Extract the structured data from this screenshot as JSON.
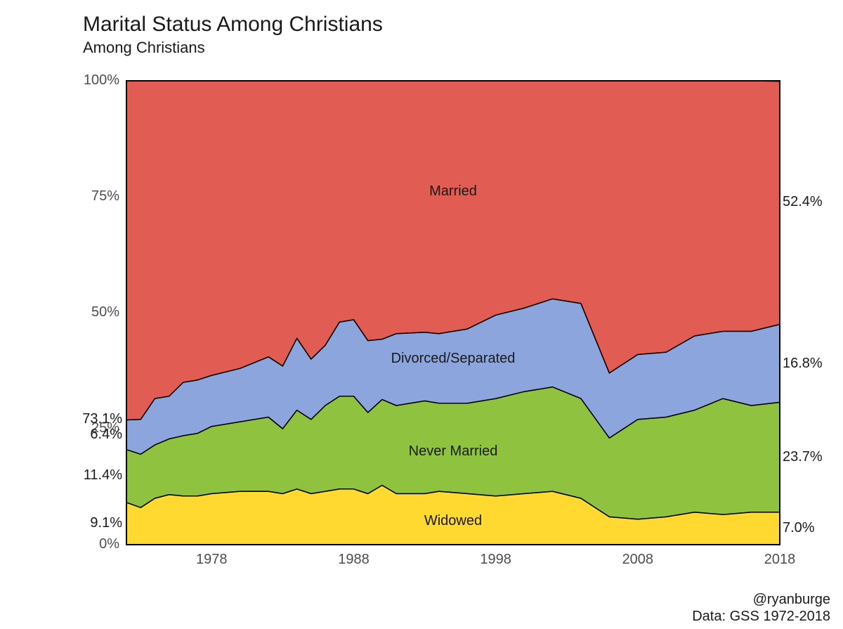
{
  "title": "Marital Status Among Christians",
  "subtitle": "Among Christians",
  "credit_line1": "@ryanburge",
  "credit_line2": "Data: GSS 1972-2018",
  "chart": {
    "type": "stacked-area",
    "background_color": "#ffffff",
    "panel_color": "#ececec",
    "grid_major_color": "#ffffff",
    "grid_minor_color": "#f5f5f5",
    "border_color": "#000000",
    "stroke_color": "#000000",
    "xlim": [
      1972,
      2018
    ],
    "ylim": [
      0,
      100
    ],
    "x_ticks": [
      1978,
      1988,
      1998,
      2008,
      2018
    ],
    "y_ticks": [
      0,
      25,
      50,
      75,
      100
    ],
    "y_minor_ticks": [
      12.5,
      37.5,
      62.5,
      87.5
    ],
    "y_tick_labels": [
      "0%",
      "25%",
      "50%",
      "75%",
      "100%"
    ],
    "years": [
      1972,
      1973,
      1974,
      1975,
      1976,
      1977,
      1978,
      1980,
      1982,
      1983,
      1984,
      1985,
      1986,
      1987,
      1988,
      1989,
      1990,
      1991,
      1993,
      1994,
      1996,
      1998,
      2000,
      2002,
      2004,
      2006,
      2008,
      2010,
      2012,
      2014,
      2016,
      2018
    ],
    "series": [
      {
        "name": "Widowed",
        "color": "#ffd92f",
        "label_x": 1995,
        "label_y": 5,
        "values": [
          9.1,
          8.0,
          10.0,
          10.8,
          10.5,
          10.5,
          11.0,
          11.5,
          11.5,
          11.0,
          12.0,
          11.0,
          11.5,
          12.0,
          12.0,
          11.0,
          12.8,
          11.0,
          11.0,
          11.5,
          11.0,
          10.5,
          11.0,
          11.5,
          10.0,
          6.0,
          5.5,
          6.0,
          7.0,
          6.5,
          7.0,
          7.0
        ]
      },
      {
        "name": "Never Married",
        "color": "#8fc33f",
        "label_x": 1995,
        "label_y": 20,
        "values": [
          11.4,
          11.5,
          11.5,
          12.0,
          13.0,
          13.5,
          14.5,
          15.0,
          16.0,
          14.0,
          17.0,
          16.0,
          18.5,
          20.0,
          20.0,
          17.5,
          18.5,
          19.0,
          20.0,
          19.0,
          19.5,
          21.0,
          22.0,
          22.5,
          21.5,
          17.0,
          21.5,
          21.5,
          22.0,
          25.0,
          23.0,
          23.7
        ]
      },
      {
        "name": "Divorced/Separated",
        "color": "#8ca5dc",
        "label_x": 1995,
        "label_y": 40,
        "values": [
          6.4,
          7.5,
          10.0,
          9.2,
          11.5,
          11.5,
          11.0,
          11.5,
          13.0,
          13.5,
          15.5,
          13.0,
          13.0,
          16.0,
          16.5,
          15.5,
          13.0,
          15.5,
          14.8,
          15.0,
          16.0,
          18.0,
          18.0,
          19.0,
          20.5,
          14.0,
          14.0,
          14.0,
          16.0,
          14.5,
          16.0,
          16.8
        ]
      },
      {
        "name": "Married",
        "color": "#e15c53",
        "label_x": 1995,
        "label_y": 76,
        "values": [
          73.1,
          73.0,
          68.5,
          68.0,
          65.0,
          64.5,
          63.5,
          62.0,
          59.5,
          61.5,
          55.5,
          60.0,
          57.0,
          52.0,
          51.5,
          56.0,
          55.7,
          54.5,
          54.2,
          54.5,
          53.5,
          50.5,
          49.0,
          47.0,
          48.0,
          63.0,
          59.0,
          58.5,
          55.0,
          54.0,
          54.0,
          52.4
        ]
      }
    ],
    "left_labels": [
      {
        "text": "73.1%",
        "y": 26.9
      },
      {
        "text": "6.4%",
        "y": 23.7
      },
      {
        "text": "11.4%",
        "y": 14.8
      },
      {
        "text": "9.1%",
        "y": 4.5
      }
    ],
    "right_labels": [
      {
        "text": "52.4%",
        "y": 73.8
      },
      {
        "text": "16.8%",
        "y": 39.0
      },
      {
        "text": "23.7%",
        "y": 18.85
      },
      {
        "text": "7.0%",
        "y": 3.5
      }
    ],
    "title_fontsize": 30,
    "subtitle_fontsize": 22,
    "axis_fontsize": 20,
    "label_fontsize": 20
  }
}
